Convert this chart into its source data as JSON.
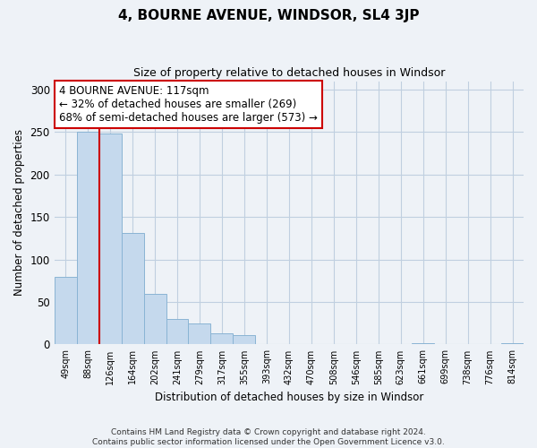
{
  "title": "4, BOURNE AVENUE, WINDSOR, SL4 3JP",
  "subtitle": "Size of property relative to detached houses in Windsor",
  "xlabel": "Distribution of detached houses by size in Windsor",
  "ylabel": "Number of detached properties",
  "bar_labels": [
    "49sqm",
    "88sqm",
    "126sqm",
    "164sqm",
    "202sqm",
    "241sqm",
    "279sqm",
    "317sqm",
    "355sqm",
    "393sqm",
    "432sqm",
    "470sqm",
    "508sqm",
    "546sqm",
    "585sqm",
    "623sqm",
    "661sqm",
    "699sqm",
    "738sqm",
    "776sqm",
    "814sqm"
  ],
  "bar_values": [
    80,
    250,
    248,
    131,
    60,
    30,
    25,
    13,
    11,
    0,
    0,
    0,
    0,
    0,
    0,
    0,
    2,
    0,
    0,
    0,
    1
  ],
  "bar_color": "#c5d9ed",
  "bar_edge_color": "#8ab4d4",
  "vline_x": 1.5,
  "vline_color": "#cc0000",
  "annotation_text": "4 BOURNE AVENUE: 117sqm\n← 32% of detached houses are smaller (269)\n68% of semi-detached houses are larger (573) →",
  "annotation_box_color": "#ffffff",
  "annotation_box_edge": "#cc0000",
  "ylim": [
    0,
    310
  ],
  "yticks": [
    0,
    50,
    100,
    150,
    200,
    250,
    300
  ],
  "footer": "Contains HM Land Registry data © Crown copyright and database right 2024.\nContains public sector information licensed under the Open Government Licence v3.0.",
  "bg_color": "#eef2f7",
  "plot_bg_color": "#eef2f7",
  "grid_color": "#c0cfe0",
  "title_fontsize": 11,
  "subtitle_fontsize": 9
}
